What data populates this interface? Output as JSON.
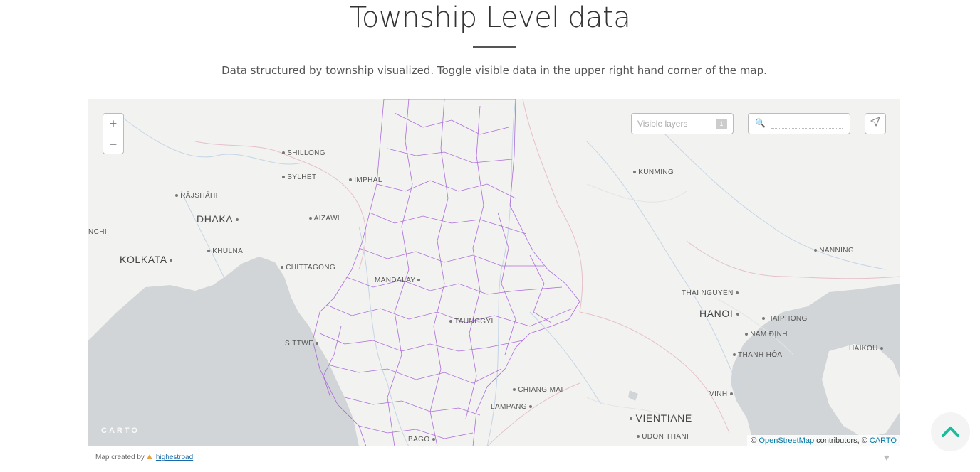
{
  "header": {
    "title": "Township Level data",
    "subtitle": "Data structured by township visualized. Toggle visible data in the upper right hand corner of the map."
  },
  "map": {
    "zoom_in": "+",
    "zoom_out": "−",
    "layers_label": "Visible layers",
    "layers_count": "1",
    "logo": "CARTO",
    "attribution": {
      "prefix": "©",
      "osm": "OpenStreetMap",
      "middle": "contributors, ©",
      "carto": "CARTO"
    },
    "cities": {
      "shillong": "SHILLONG",
      "sylhet": "SYLHET",
      "imphal": "IMPHAL",
      "kunming": "KUNMING",
      "rajshahi": "RĀJSHĀHI",
      "dhaka": "DHAKA",
      "aizawl": "AIZAWL",
      "nchi": "NCHI",
      "khulna": "KHULNA",
      "kolkata": "KOLKATA",
      "chittagong": "CHITTAGONG",
      "nanning": "NANNING",
      "mandalay": "MANDALAY",
      "thai_nguyen": "THÁI NGUYÊN",
      "hanoi": "HANOI",
      "haiphong": "HAIPHONG",
      "taunggyi": "TAUNGGYI",
      "nam_dinh": "NAM ĐỊNH",
      "sittwe": "SITTWE",
      "thanh_hoa": "THANH HÓA",
      "haikou": "HAIKOU",
      "chiang_mai": "CHIANG MAI",
      "vinh": "VINH",
      "lampang": "LAMPANG",
      "vientiane": "VIENTIANE",
      "udon_thani": "UDON THANI",
      "bago": "BAGO"
    }
  },
  "footer": {
    "created_by": "Map created by",
    "username": "highestroad"
  },
  "colors": {
    "township_stroke": "#a055d6",
    "water": "#d2d5d7",
    "land": "#f2f2f1",
    "accent": "#1abc9c"
  }
}
